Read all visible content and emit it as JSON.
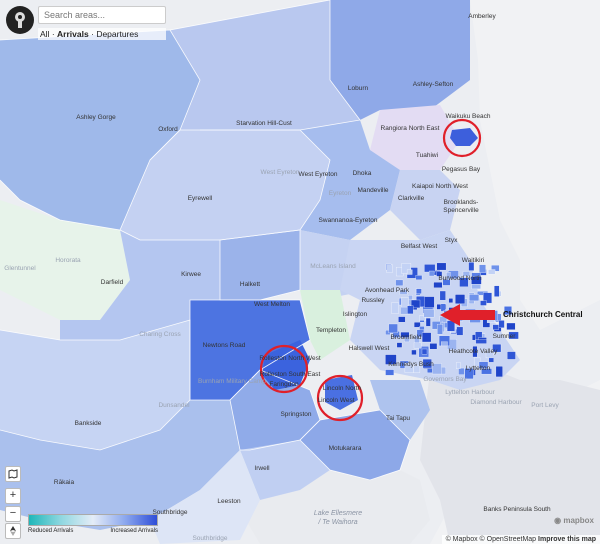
{
  "search": {
    "placeholder": "Search areas..."
  },
  "modes": {
    "all": "All",
    "sep1": "·",
    "arrivals": "Arrivals",
    "sep2": "·",
    "departures": "Departures",
    "active": "Arrivals"
  },
  "controls": {
    "zoom_in": "+",
    "zoom_out": "−"
  },
  "legend": {
    "low_label": "Reduced Arrivals",
    "high_label": "Increased Arrivals"
  },
  "mapbox_logo": "mapbox",
  "attribution": {
    "mapbox": "© Mapbox",
    "osm": "© OpenStreetMap",
    "improve": "Improve this map"
  },
  "callout": {
    "label": "Christchurch Central"
  },
  "places": {
    "amberley": "Amberley",
    "loburn": "Loburn",
    "ashley_sefton": "Ashley-Sefton",
    "ashley_gorge": "Ashley Gorge",
    "oxford": "Oxford",
    "starvation_hill": "Starvation Hill-Cust",
    "rangiora_ne": "Rangiora North East",
    "waikuku": "Waikuku Beach",
    "tuahiwi": "Tuahiwi",
    "pegasus": "Pegasus Bay",
    "kaiapoi_nw": "Kaiapoi North West",
    "dhoka": "Dhoka",
    "west_eyreton_light": "West Eyreton",
    "west_eyreton": "West Eyreton",
    "eyreton": "Eyreton",
    "mandeville": "Mandeville",
    "clarkville": "Clarkville",
    "brooklands": "Brooklands-",
    "spencerville": "Spencerville",
    "eyrewell": "Eyrewell",
    "swannanoa": "Swannanoa-Eyreton",
    "styx": "Styx",
    "belfast": "Belfast West",
    "waitikiri": "Waitikiri",
    "burwood": "Burwood North",
    "glentunnel": "Glentunnel",
    "hororata": "Hororata",
    "darfield": "Darfield",
    "kirwee": "Kirwee",
    "halkett": "Halkett",
    "mclean": "McLeans Island",
    "avonhead": "Avonhead Park",
    "russley": "Russley",
    "west_melton": "West Melton",
    "islington": "Islington",
    "charing": "Charing Cross",
    "newtons": "Newtons Road",
    "templeton": "Templeton",
    "halswell": "Halswell West",
    "broomfield": "Broomfield",
    "kennedys": "Kennedys Bush",
    "rolleston_nw": "Rolleston North West",
    "rolleston_se": "Rolleston South East",
    "faringdon": "Faringdon",
    "burnham": "Burnham Military Camp",
    "lincoln_n": "Lincoln North",
    "lincoln_w": "Lincoln West",
    "springston": "Springston",
    "tai_tapu": "Tai Tapu",
    "motukarara": "Motukarara",
    "dunsandel": "Dunsandel",
    "bankside": "Bankside",
    "irwell": "Irwell",
    "rakaia": "Rākaia",
    "leeston": "Leeston",
    "southbridge": "Southbridge",
    "southbridge2": "Southbridge",
    "ellesmere1": "Lake Ellesmere",
    "ellesmere2": "/ Te Waihora",
    "banks": "Banks Peninsula South",
    "port_levy": "Port Levy",
    "heathcote": "Heathcote Valley",
    "lyttelton": "Lyttelton",
    "sumner": "Sumner",
    "lyttelton_h": "Lyttelton Harbour",
    "governors": "Governors Bay",
    "diamond": "Diamond Harbour"
  }
}
